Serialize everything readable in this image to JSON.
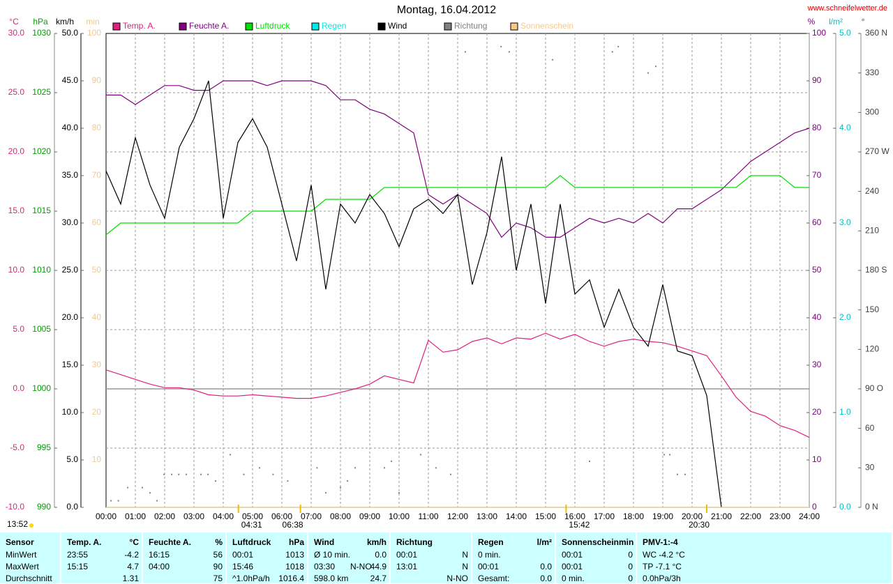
{
  "chart_data": {
    "type": "line",
    "title": "Montag, 16.04.2012",
    "source": "www.schneifelwetter.de",
    "xlim": [
      0,
      24
    ],
    "xticks": [
      {
        "value": 0,
        "label": "00:00"
      },
      {
        "value": 1,
        "label": "01:00"
      },
      {
        "value": 2,
        "label": "02:00"
      },
      {
        "value": 3,
        "label": "03:00"
      },
      {
        "value": 4,
        "label": "04:00"
      },
      {
        "value": 5,
        "label": "05:00"
      },
      {
        "value": 6,
        "label": "06:00"
      },
      {
        "value": 7,
        "label": "07:00"
      },
      {
        "value": 8,
        "label": "08:00"
      },
      {
        "value": 9,
        "label": "09:00"
      },
      {
        "value": 10,
        "label": "10:00"
      },
      {
        "value": 11,
        "label": "11:00"
      },
      {
        "value": 12,
        "label": "12:00"
      },
      {
        "value": 13,
        "label": "13:00"
      },
      {
        "value": 14,
        "label": "14:00"
      },
      {
        "value": 15,
        "label": "15:00"
      },
      {
        "value": 16,
        "label": "16:00"
      },
      {
        "value": 17,
        "label": "17:00"
      },
      {
        "value": 18,
        "label": "18:00"
      },
      {
        "value": 19,
        "label": "19:00"
      },
      {
        "value": 20,
        "label": "20:00"
      },
      {
        "value": 21,
        "label": "21:00"
      },
      {
        "value": 22,
        "label": "22:00"
      },
      {
        "value": 23,
        "label": "23:00"
      },
      {
        "value": 24,
        "label": "24:00"
      }
    ],
    "grid": true,
    "axes": [
      {
        "label": "°C",
        "side": "left",
        "color": "#e0207f",
        "lim": [
          -10,
          30
        ],
        "ticks": [
          {
            "value": -10,
            "label": "-10.0"
          },
          {
            "value": -5,
            "label": "-5.0"
          },
          {
            "value": 0,
            "label": "0.0"
          },
          {
            "value": 5,
            "label": "5.0"
          },
          {
            "value": 10,
            "label": "10.0"
          },
          {
            "value": 15,
            "label": "15.0"
          },
          {
            "value": 20,
            "label": "20.0"
          },
          {
            "value": 25,
            "label": "25.0"
          },
          {
            "value": 30,
            "label": "30.0"
          }
        ]
      },
      {
        "label": "hPa",
        "side": "left",
        "color": "#00a000",
        "lim": [
          990,
          1030
        ],
        "ticks": [
          990,
          995,
          1000,
          1005,
          1010,
          1015,
          1020,
          1025,
          1030
        ]
      },
      {
        "label": "km/h",
        "side": "left",
        "color": "#000000",
        "lim": [
          0,
          50
        ],
        "ticks": [
          {
            "value": 0,
            "label": "0.0"
          },
          {
            "value": 5,
            "label": "5.0"
          },
          {
            "value": 10,
            "label": "10.0"
          },
          {
            "value": 15,
            "label": "15.0"
          },
          {
            "value": 20,
            "label": "20.0"
          },
          {
            "value": 25,
            "label": "25.0"
          },
          {
            "value": 30,
            "label": "30.0"
          },
          {
            "value": 35,
            "label": "35.0"
          },
          {
            "value": 40,
            "label": "40.0"
          },
          {
            "value": 45,
            "label": "45.0"
          },
          {
            "value": 50,
            "label": "50.0"
          }
        ]
      },
      {
        "label": "min",
        "side": "left",
        "color": "#f0c890",
        "lim": [
          0,
          100
        ],
        "ticks": [
          10,
          20,
          30,
          40,
          50,
          60,
          70,
          80,
          90,
          100
        ]
      },
      {
        "label": "%",
        "side": "right",
        "color": "#800080",
        "lim": [
          0,
          100
        ],
        "ticks": [
          0,
          10,
          20,
          30,
          40,
          50,
          60,
          70,
          80,
          90,
          100
        ]
      },
      {
        "label": "l/m²",
        "side": "right",
        "color": "#00c0c0",
        "lim": [
          0,
          5
        ],
        "ticks": [
          {
            "value": 0,
            "label": "0.0"
          },
          {
            "value": 1,
            "label": "1.0"
          },
          {
            "value": 2,
            "label": "2.0"
          },
          {
            "value": 3,
            "label": "3.0"
          },
          {
            "value": 4,
            "label": "4.0"
          },
          {
            "value": 5,
            "label": "5.0"
          }
        ]
      },
      {
        "label": "°",
        "side": "right",
        "color": "#404040",
        "lim": [
          0,
          360
        ],
        "ticks": [
          {
            "value": 0,
            "label": "0 N"
          },
          30,
          60,
          {
            "value": 90,
            "label": "90 O"
          },
          120,
          150,
          {
            "value": 180,
            "label": "180 S"
          },
          210,
          240,
          {
            "value": 270,
            "label": "270 W"
          },
          300,
          330,
          {
            "value": 360,
            "label": "360 N"
          }
        ]
      }
    ],
    "x": [
      0,
      0.5,
      1,
      1.5,
      2,
      2.5,
      3,
      3.5,
      4,
      4.5,
      5,
      5.5,
      6,
      6.5,
      7,
      7.5,
      8,
      8.5,
      9,
      9.5,
      10,
      10.5,
      11,
      11.5,
      12,
      12.5,
      13,
      13.5,
      14,
      14.5,
      15,
      15.5,
      16,
      16.5,
      17,
      17.5,
      18,
      18.5,
      19,
      19.5,
      20,
      20.5,
      21,
      21.5,
      22,
      22.5,
      23,
      23.5,
      24
    ],
    "series": [
      {
        "name": "Temp. A.",
        "color": "#e0207f",
        "axis": "°C",
        "values": [
          1.6,
          1.2,
          0.8,
          0.4,
          0.1,
          0.1,
          -0.1,
          -0.5,
          -0.6,
          -0.6,
          -0.5,
          -0.6,
          -0.7,
          -0.8,
          -0.8,
          -0.6,
          -0.3,
          0.0,
          0.4,
          1.1,
          0.8,
          0.5,
          4.1,
          3.1,
          3.3,
          4.0,
          4.3,
          3.8,
          4.3,
          4.2,
          4.7,
          4.2,
          4.6,
          4.0,
          3.6,
          4.0,
          4.2,
          4.0,
          3.9,
          3.6,
          3.2,
          2.8,
          1.1,
          -0.7,
          -1.9,
          -2.3,
          -3.1,
          -3.5,
          -4.1
        ]
      },
      {
        "name": "Feuchte A.",
        "color": "#800080",
        "axis": "%",
        "values": [
          87,
          87,
          85,
          87,
          89,
          89,
          88,
          88,
          90,
          90,
          90,
          89,
          90,
          90,
          90,
          89,
          86,
          86,
          84,
          83,
          81,
          79,
          66,
          64,
          66,
          64,
          62,
          57,
          60,
          59,
          57,
          57,
          59,
          61,
          60,
          61,
          60,
          62,
          60,
          63,
          63,
          65,
          67,
          70,
          73,
          75,
          77,
          79,
          80
        ]
      },
      {
        "name": "Luftdruck",
        "color": "#00e000",
        "axis": "hPa",
        "values": [
          1013,
          1014,
          1014,
          1014,
          1014,
          1014,
          1014,
          1014,
          1014,
          1014,
          1015,
          1015,
          1015,
          1015,
          1015,
          1016,
          1016,
          1016,
          1016,
          1017,
          1017,
          1017,
          1017,
          1017,
          1017,
          1017,
          1017,
          1017,
          1017,
          1017,
          1017,
          1018,
          1017,
          1017,
          1017,
          1017,
          1017,
          1017,
          1017,
          1017,
          1017,
          1017,
          1017,
          1017,
          1018,
          1018,
          1018,
          1017,
          1017
        ]
      },
      {
        "name": "Regen",
        "color": "#00e8e8",
        "axis": "l/m²",
        "x": [
          0,
          24
        ],
        "values": [
          0,
          0
        ]
      },
      {
        "name": "Wind",
        "color": "#000000",
        "axis": "km/h",
        "values": [
          35.5,
          32,
          39,
          34,
          30.5,
          38,
          41,
          45,
          30.5,
          38.5,
          41,
          38,
          32,
          26,
          34,
          23,
          32,
          30,
          33,
          31,
          27.5,
          31.5,
          32.5,
          31,
          33,
          23.5,
          29,
          37,
          25,
          32,
          21.5,
          32,
          22.5,
          24,
          19,
          23,
          19,
          17,
          23.5,
          16.5,
          16,
          11.8,
          0,
          null,
          null,
          null,
          null,
          null,
          null
        ]
      },
      {
        "name": "Richtung",
        "color": "#808080",
        "axis": "°",
        "style": "points",
        "x": [
          0.17,
          0.42,
          0.74,
          1.24,
          1.5,
          1.74,
          1.98,
          2.24,
          2.48,
          2.74,
          3.24,
          3.48,
          3.74,
          4.24,
          4.7,
          5.24,
          5.7,
          6.2,
          7.2,
          7.5,
          8.0,
          8.24,
          8.5,
          9.5,
          9.74,
          10.0,
          10.74,
          11.26,
          11.76,
          12.26,
          13.48,
          13.76,
          15.24,
          16.5,
          17.28,
          17.48,
          18.5,
          18.76,
          19.05,
          19.24,
          19.5,
          19.76
        ],
        "values": [
          5,
          5,
          15,
          15,
          11,
          5,
          25,
          25,
          25,
          25,
          25,
          25,
          20,
          40,
          25,
          30,
          25,
          20,
          30,
          11,
          15,
          20,
          30,
          30,
          35,
          11,
          40,
          30,
          25,
          346,
          350,
          346,
          340,
          35,
          346,
          350,
          330,
          335,
          40,
          40,
          25,
          25
        ]
      },
      {
        "name": "Sonnenschein",
        "color": "#f8c888",
        "axis": "min",
        "x": [
          0,
          24
        ],
        "values": [
          0,
          0
        ]
      }
    ],
    "annotations": [
      {
        "x": 4.517,
        "label": "04:31"
      },
      {
        "x": 6.633,
        "label": "06:38"
      },
      {
        "x": 15.7,
        "label": "15:42"
      },
      {
        "x": 20.5,
        "label": "20:30"
      }
    ],
    "time": "13:52"
  },
  "table": {
    "header": [
      {
        "left": "Sensor"
      },
      {
        "left": "Temp. A.",
        "right": "°C"
      },
      {
        "left": "Feuchte A.",
        "right": "%"
      },
      {
        "left": "Luftdruck",
        "right": "hPa"
      },
      {
        "left": "Wind",
        "right": "km/h"
      },
      {
        "left": "Richtung"
      },
      {
        "left": "Regen",
        "right": "l/m²"
      },
      {
        "left": "Sonnenschein",
        "right": "min"
      },
      {
        "left": "PMV-1:-4"
      }
    ],
    "rows": [
      [
        {
          "left": "MinWert"
        },
        {
          "left": "23:55",
          "right": "-4.2"
        },
        {
          "left": "16:15",
          "right": "56"
        },
        {
          "left": "00:01",
          "right": "1013"
        },
        {
          "left": "Ø 10 min.",
          "right": "0.0"
        },
        {
          "left": "00:01",
          "right": "N"
        },
        {
          "left": "0 min."
        },
        {
          "left": "00:01",
          "right": "0"
        },
        {
          "left": "WC -4.2 °C"
        }
      ],
      [
        {
          "left": "MaxWert"
        },
        {
          "left": "15:15",
          "right": "4.7"
        },
        {
          "left": "04:00",
          "right": "90"
        },
        {
          "left": "15:46",
          "right": "1018"
        },
        {
          "left": "03:30",
          "mid": "N-NO",
          "right": "44.9"
        },
        {
          "left": "13:01",
          "right": "N"
        },
        {
          "left": "00:01",
          "right": "0.0"
        },
        {
          "left": "00:01",
          "right": "0"
        },
        {
          "left": "TP -7.1 °C"
        }
      ],
      [
        {
          "left": "Durchschnitt"
        },
        {
          "right": "1.31"
        },
        {
          "right": "75"
        },
        {
          "left": "^1.0hPa/h",
          "right": "1016.4"
        },
        {
          "left": "598.0 km",
          "right": "24.7"
        },
        {
          "right": "N-NO"
        },
        {
          "left": "Gesamt:",
          "right": "0.0"
        },
        {
          "left": "0 min.",
          "right": "0"
        },
        {
          "left": "0.0hPa/3h"
        }
      ]
    ]
  }
}
